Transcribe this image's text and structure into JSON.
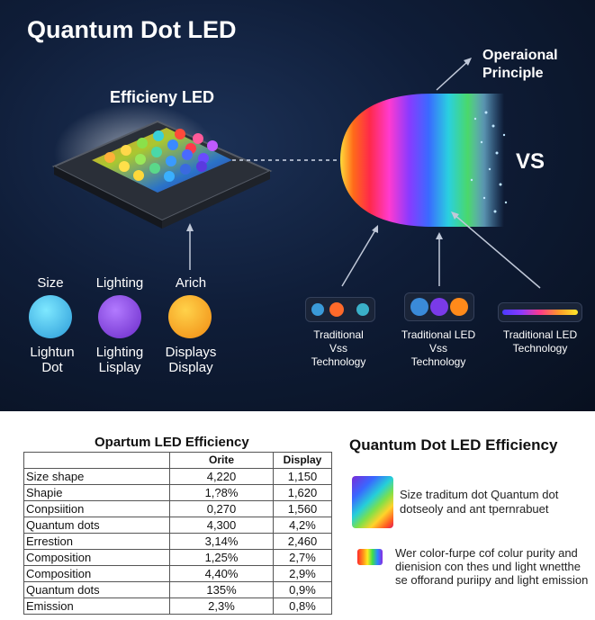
{
  "header": {
    "title": "Quantum Dot LED",
    "chip_label": "Efficieny LED",
    "principle_label": "Operaional\nPrinciple",
    "vs_label": "VS"
  },
  "features": [
    {
      "top": "Size",
      "bottom": "Lightun\nDot",
      "color": "#3bb6e8"
    },
    {
      "top": "Lighting",
      "bottom": "Lighting\nLisplay",
      "color": "#8a3fd9"
    },
    {
      "top": "Arich",
      "bottom": "Displays\nDisplay",
      "color": "#f7a21e"
    }
  ],
  "comparisons": [
    {
      "label": "Traditional\nVss\nTechnology"
    },
    {
      "label": "Traditional LED\nVss\nTechnology"
    },
    {
      "label": "Traditional LED\nTechnology"
    }
  ],
  "table": {
    "title": "Opartum LED Efficiency",
    "headers": [
      "",
      "Orite",
      "Display"
    ],
    "rows": [
      [
        "Size shape",
        "4,220",
        "1,150"
      ],
      [
        "Shapie",
        "1,?8%",
        "1,620"
      ],
      [
        "Conpsiition",
        "0,270",
        "1,560"
      ],
      [
        "Quantum dots",
        "4,300",
        "4,2%"
      ],
      [
        "Errestion",
        "3,14%",
        "2,460"
      ],
      [
        "Composition",
        "1,25%",
        "2,7%"
      ],
      [
        "Composition",
        "4,40%",
        "2,9%"
      ],
      [
        " Quantum dots",
        "135%",
        "0,9%"
      ],
      [
        "Emission",
        "2,3%",
        "0,8%"
      ]
    ]
  },
  "right_panel": {
    "title": "Quantum Dot LED Efficiency",
    "text1": "Size traditum dot Quantum dot dotseoly and ant tpernrabuet",
    "text2": "Wer color-furpe cof colur purity and dienision con thes und light wnetthe se offorand puriipy and light emission"
  }
}
